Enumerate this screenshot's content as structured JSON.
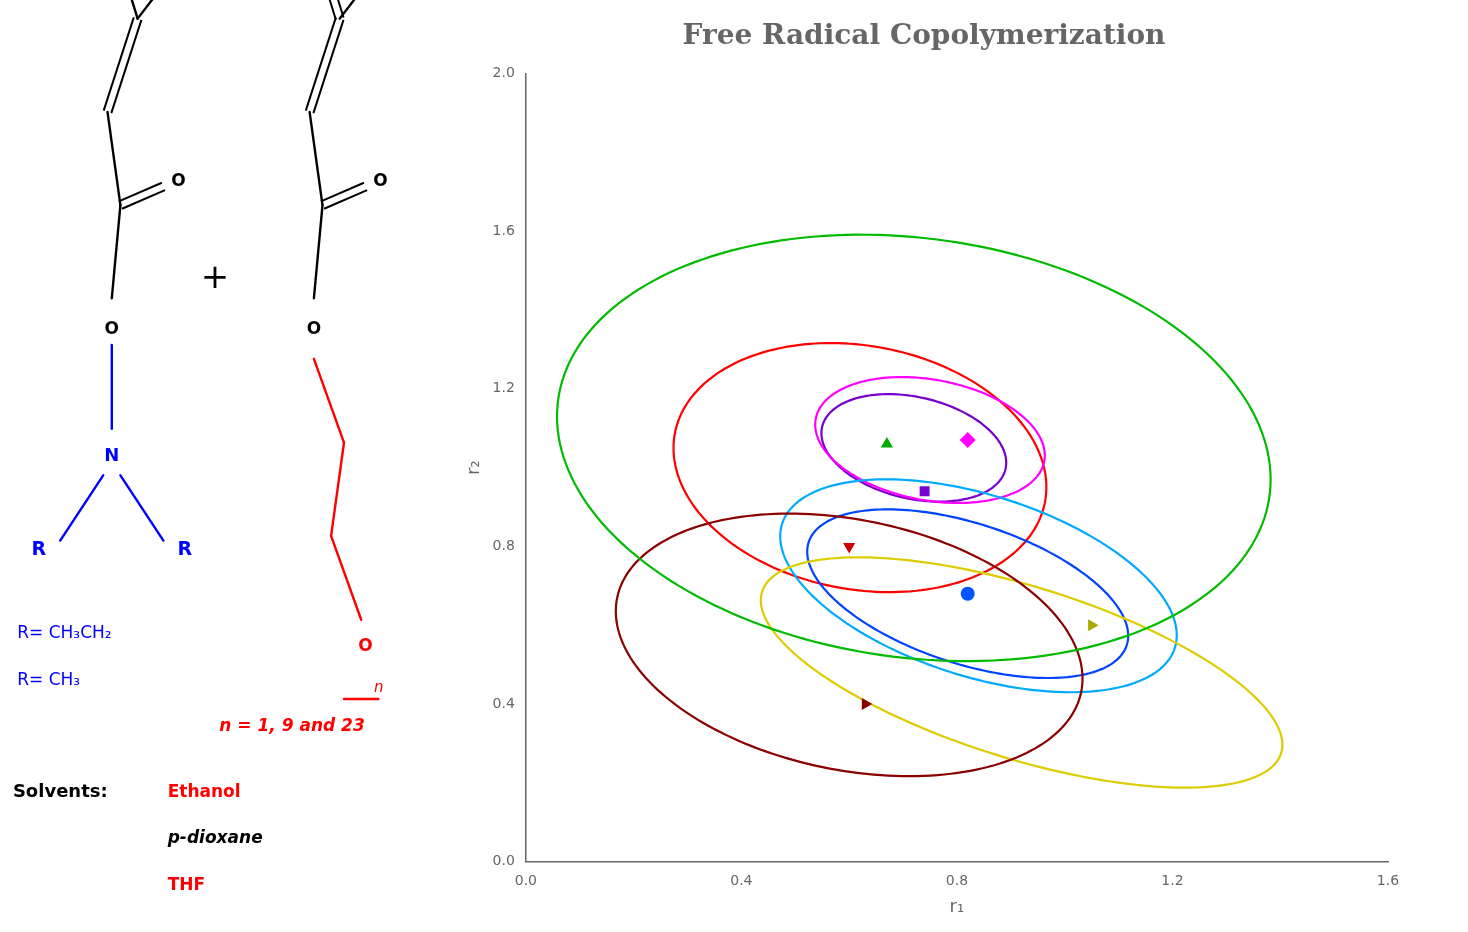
{
  "chart_data": {
    "type": "scatter",
    "title": "Free Radical Copolymerization",
    "x_label": "r₁",
    "y_label": "r₂",
    "xlim": [
      0.0,
      1.6
    ],
    "ylim": [
      0.0,
      2.0
    ],
    "xticks": [
      {
        "value": 0.0,
        "label": "0.0"
      },
      0.4,
      0.8,
      1.2,
      1.6
    ],
    "yticks": [
      {
        "value": 0.0,
        "label": "0.0"
      },
      0.4,
      0.8,
      1.2,
      1.6,
      {
        "value": 2.0,
        "label": "2.0"
      }
    ],
    "grid": false,
    "series": [
      {
        "x": [
          0.82
        ],
        "values": [
          1.07
        ],
        "marker": "diamond",
        "color": "#FF00FF"
      },
      {
        "x": [
          0.67
        ],
        "values": [
          1.06
        ],
        "marker": "triangle_up",
        "color": "#00AA00"
      },
      {
        "x": [
          0.74
        ],
        "values": [
          0.94
        ],
        "marker": "square",
        "color": "#7700CC"
      },
      {
        "x": [
          0.6
        ],
        "values": [
          0.8
        ],
        "marker": "triangle_down",
        "color": "#CC0000"
      },
      {
        "x": [
          0.82
        ],
        "values": [
          0.68
        ],
        "marker": "circle",
        "color": "#0055FF"
      },
      {
        "x": [
          0.63
        ],
        "values": [
          0.4
        ],
        "marker": "triangle_right",
        "color": "#8B0000"
      },
      {
        "x": [
          1.05
        ],
        "values": [
          0.6
        ],
        "marker": "triangle_right",
        "color": "#AAAA00"
      }
    ],
    "ellipses": [
      {
        "cx": 0.62,
        "cy": 1.0,
        "width": 0.72,
        "height": 0.6,
        "angle": -30,
        "color": "#FF0000"
      },
      {
        "cx": 0.72,
        "cy": 1.05,
        "width": 0.36,
        "height": 0.25,
        "angle": -25,
        "color": "#7700CC"
      },
      {
        "cx": 0.75,
        "cy": 1.07,
        "width": 0.44,
        "height": 0.3,
        "angle": -20,
        "color": "#FF00FF"
      },
      {
        "cx": 0.82,
        "cy": 0.68,
        "width": 0.65,
        "height": 0.34,
        "angle": -28,
        "color": "#0044FF"
      },
      {
        "cx": 0.84,
        "cy": 0.7,
        "width": 0.8,
        "height": 0.44,
        "angle": -28,
        "color": "#00AAFF"
      },
      {
        "cx": 0.92,
        "cy": 0.48,
        "width": 1.05,
        "height": 0.42,
        "angle": -25,
        "color": "#DDCC00"
      },
      {
        "cx": 0.6,
        "cy": 0.55,
        "width": 0.9,
        "height": 0.62,
        "angle": -22,
        "color": "#8B0000"
      },
      {
        "cx": 0.72,
        "cy": 1.05,
        "width": 1.35,
        "height": 1.05,
        "angle": -18,
        "color": "#00BB00"
      }
    ],
    "annotations": [
      {
        "text": "O",
        "color": "#000000"
      },
      {
        "text": "O",
        "color": "#000000"
      },
      {
        "text": "N",
        "color": "#0000FF"
      },
      {
        "text": "R",
        "color": "#0000FF"
      },
      {
        "text": "R",
        "color": "#0000FF"
      },
      {
        "text": "+",
        "color": "#000000"
      },
      {
        "text": "O",
        "color": "#000000"
      },
      {
        "text": "O",
        "color": "#000000"
      },
      {
        "text": "O",
        "color": "#FF0000"
      },
      {
        "text": "n",
        "color": "#FF0000"
      },
      {
        "text": "R= CH₃CH₂",
        "color": "#0000FF"
      },
      {
        "text": "R= CH₃",
        "color": "#0000FF"
      },
      {
        "text": "n = 1, 9 and 23",
        "color": "#FF0000"
      },
      {
        "text": "Solvents:",
        "color": "#000000"
      },
      {
        "text": "Ethanol",
        "color": "#FF0000"
      },
      {
        "text": "p-dioxane",
        "color": "#000000"
      },
      {
        "text": "THF",
        "color": "#FF0000"
      }
    ]
  }
}
